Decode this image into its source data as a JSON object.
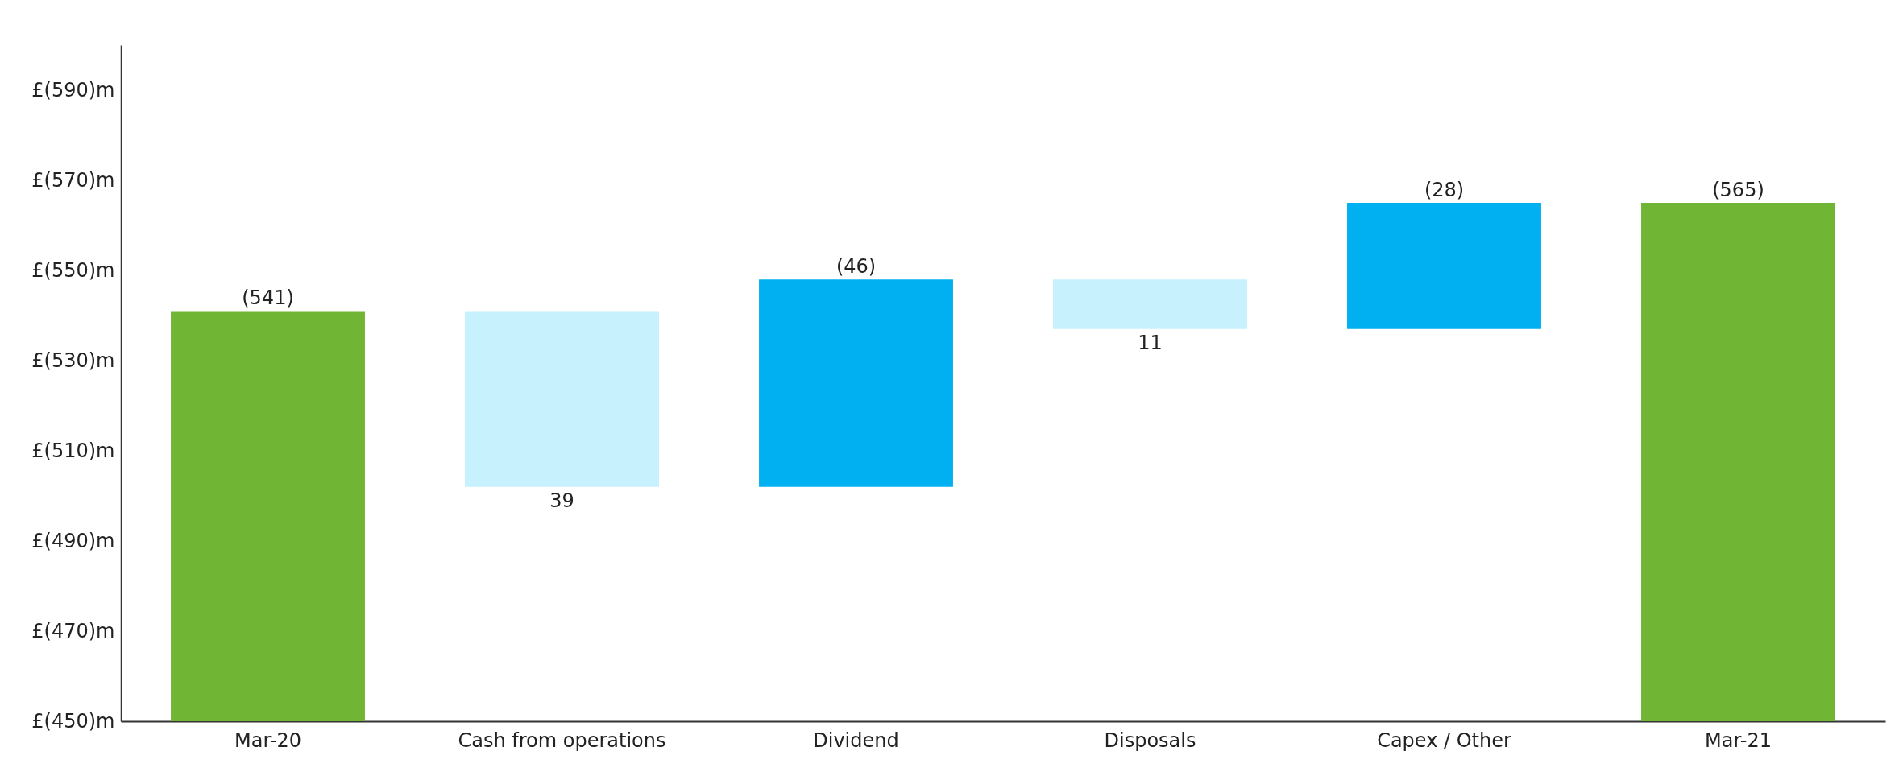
{
  "chart_data": {
    "type": "bar",
    "categories": [
      "Mar-20",
      "Cash from operations",
      "Dividend",
      "Disposals",
      "Capex / Other",
      "Mar-21"
    ],
    "base": [
      450,
      502,
      502,
      537,
      537,
      450
    ],
    "values": [
      91,
      39,
      46,
      11,
      28,
      115
    ],
    "colors": [
      "#70b534",
      "#c7f1fc",
      "#00b0f0",
      "#c7f1fc",
      "#00b0f0",
      "#70b534"
    ],
    "value_labels": [
      "(541)",
      "39",
      "(46)",
      "11",
      "(28)",
      "(565)"
    ],
    "ylim": [
      450,
      600
    ],
    "yticks": [
      {
        "value": 450,
        "label": "£(450)m"
      },
      {
        "value": 470,
        "label": "£(470)m"
      },
      {
        "value": 490,
        "label": "£(490)m"
      },
      {
        "value": 510,
        "label": "£(510)m"
      },
      {
        "value": 530,
        "label": "£(530)m"
      },
      {
        "value": 550,
        "label": "£(550)m"
      },
      {
        "value": 570,
        "label": "£(570)m"
      },
      {
        "value": 590,
        "label": "£(590)m"
      }
    ],
    "grid": false
  }
}
